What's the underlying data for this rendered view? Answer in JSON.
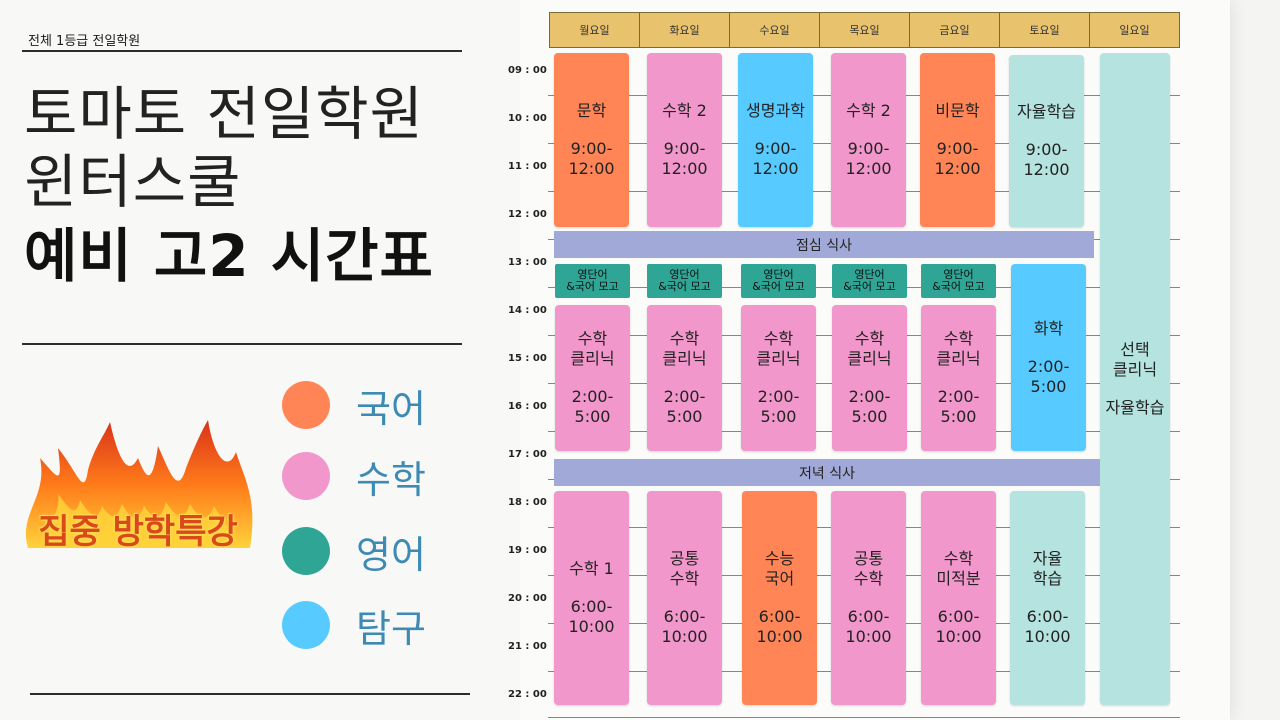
{
  "header": {
    "top_label": "전체 1등급 전일학원",
    "title_line1": "토마토 전일학원",
    "title_line2": "윈터스쿨",
    "title_line3": "예비 고2 시간표"
  },
  "badge": {
    "text": "집중 방학특강"
  },
  "legend": [
    {
      "label": "국어",
      "color": "#ff8556"
    },
    {
      "label": "수학",
      "color": "#f297cb"
    },
    {
      "label": "영어",
      "color": "#2fa595"
    },
    {
      "label": "탐구",
      "color": "#57cbff"
    }
  ],
  "colors": {
    "korean": "#ff8556",
    "math": "#f297cb",
    "english": "#2fa595",
    "inquiry": "#57cbff",
    "self_study": "#b5e3df",
    "meal": "#a1a9d8",
    "day_header": "#e8c26c"
  },
  "timetable": {
    "days": [
      "월요일",
      "화요일",
      "수요일",
      "목요일",
      "금요일",
      "토요일",
      "일요일"
    ],
    "times": [
      "09 : 00",
      "10 : 00",
      "11 : 00",
      "12 : 00",
      "13 : 00",
      "14 : 00",
      "15 : 00",
      "16 : 00",
      "17 : 00",
      "18 : 00",
      "19 : 00",
      "20 : 00",
      "21 : 00",
      "22 : 00"
    ],
    "meals": {
      "lunch": "점심 식사",
      "dinner": "저녁 식사"
    },
    "blocks": {
      "mon_am": {
        "title": "문학",
        "time": "9:00-\n12:00"
      },
      "tue_am": {
        "title": "수학 2",
        "time": "9:00-\n12:00"
      },
      "wed_am": {
        "title": "생명과학",
        "time": "9:00-\n12:00"
      },
      "thu_am": {
        "title": "수학 2",
        "time": "9:00-\n12:00"
      },
      "fri_am": {
        "title": "비문학",
        "time": "9:00-\n12:00"
      },
      "sat_am": {
        "title": "자율학습",
        "time": "9:00-\n12:00"
      },
      "sun_all": {
        "title": "선택\n클리닉",
        "time": "자율학습"
      },
      "mini": {
        "title": "영단어\n&국어 모고"
      },
      "mon_pm": {
        "title": "수학\n클리닉",
        "time": "2:00-\n5:00"
      },
      "tue_pm": {
        "title": "수학\n클리닉",
        "time": "2:00-\n5:00"
      },
      "wed_pm": {
        "title": "수학\n클리닉",
        "time": "2:00-\n5:00"
      },
      "thu_pm": {
        "title": "수학\n클리닉",
        "time": "2:00-\n5:00"
      },
      "fri_pm": {
        "title": "수학\n클리닉",
        "time": "2:00-\n5:00"
      },
      "sat_pm": {
        "title": "화학",
        "time": "2:00-\n5:00"
      },
      "mon_ev": {
        "title": "수학 1",
        "time": "6:00-\n10:00"
      },
      "tue_ev": {
        "title": "공통\n수학",
        "time": "6:00-\n10:00"
      },
      "wed_ev": {
        "title": "수능\n국어",
        "time": "6:00-\n10:00"
      },
      "thu_ev": {
        "title": "공통\n수학",
        "time": "6:00-\n10:00"
      },
      "fri_ev": {
        "title": "수학\n미적분",
        "time": "6:00-\n10:00"
      },
      "sat_ev": {
        "title": "자율\n학습",
        "time": "6:00-\n10:00"
      }
    }
  }
}
